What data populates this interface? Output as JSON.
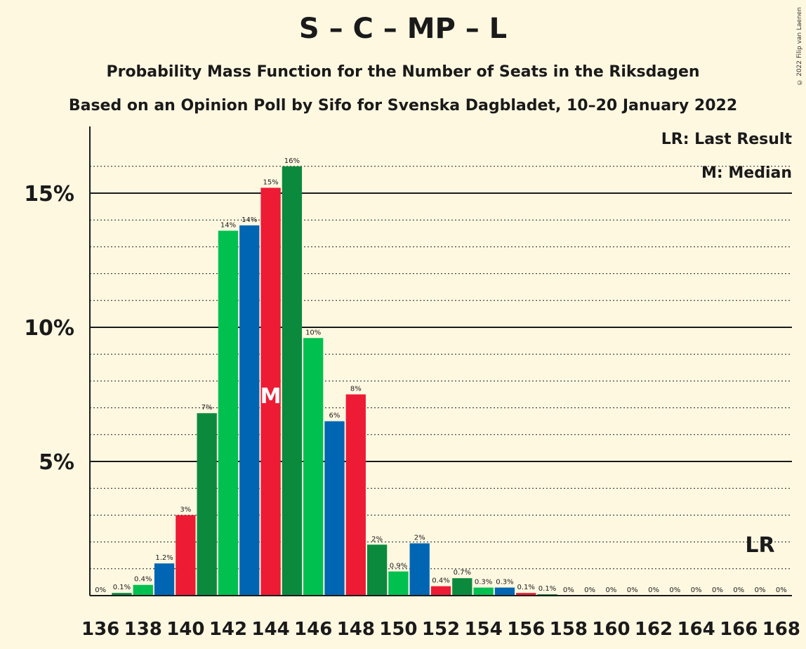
{
  "title": "S – C – MP – L",
  "subtitle": "Probability Mass Function for the Number of Seats in the Riksdagen",
  "subtitle2": "Based on an Opinion Poll by Sifo for Svenska Dagbladet, 10–20 January 2022",
  "legend": {
    "lr": "LR: Last Result",
    "m": "M: Median"
  },
  "copyright": "© 2022 Filip van Laenen",
  "colors": {
    "background": "#FFF8E1",
    "dark_green": "#0B8A3E",
    "green": "#00C050",
    "blue": "#0066B3",
    "red": "#ED1B34",
    "axis": "#1a1a1a"
  },
  "chart_data": {
    "type": "bar",
    "x": [
      136,
      137,
      138,
      139,
      140,
      141,
      142,
      143,
      144,
      145,
      146,
      147,
      148,
      149,
      150,
      151,
      152,
      153,
      154,
      155,
      156,
      157,
      158,
      159,
      160,
      161,
      162,
      163,
      164,
      165,
      166,
      167,
      168
    ],
    "values": [
      0,
      0.1,
      0.4,
      1.2,
      3,
      6.8,
      13.6,
      13.8,
      15.2,
      16.0,
      9.6,
      6.5,
      7.5,
      1.9,
      0.9,
      1.95,
      0.35,
      0.65,
      0.3,
      0.3,
      0.1,
      0.05,
      0,
      0,
      0,
      0,
      0,
      0,
      0,
      0,
      0,
      0,
      0
    ],
    "labels": [
      "0%",
      "0.1%",
      "0.4%",
      "1.2%",
      "3%",
      "7%",
      "14%",
      "14%",
      "15%",
      "16%",
      "10%",
      "6%",
      "8%",
      "2%",
      "0.9%",
      "2%",
      "0.4%",
      "0.7%",
      "0.3%",
      "0.3%",
      "0.1%",
      "0.1%",
      "0%",
      "0%",
      "0%",
      "0%",
      "0%",
      "0%",
      "0%",
      "0%",
      "0%",
      "0%",
      "0%"
    ],
    "bar_colors": [
      "red",
      "dark_green",
      "green",
      "blue",
      "red",
      "dark_green",
      "green",
      "blue",
      "red",
      "dark_green",
      "green",
      "blue",
      "red",
      "dark_green",
      "green",
      "blue",
      "red",
      "dark_green",
      "green",
      "blue",
      "red",
      "dark_green",
      "green",
      "blue",
      "red",
      "dark_green",
      "green",
      "blue",
      "red",
      "dark_green",
      "green",
      "blue",
      "red"
    ],
    "x_tick_labels": [
      "136",
      "138",
      "140",
      "142",
      "144",
      "146",
      "148",
      "150",
      "152",
      "154",
      "156",
      "158",
      "160",
      "162",
      "164",
      "166",
      "168"
    ],
    "y_ticks": [
      "5%",
      "10%",
      "15%"
    ],
    "y_tick_values": [
      5,
      10,
      15
    ],
    "ylim": [
      0,
      17.5
    ],
    "median": 144,
    "median_label": "M",
    "last_result": 167,
    "last_result_label": "LR",
    "grid": "dotted minor every 1%, solid at 5% steps"
  }
}
